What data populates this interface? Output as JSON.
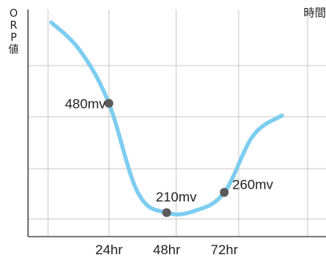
{
  "chart_data": {
    "type": "line",
    "ylabel": "ORP値",
    "xlabel": "時間",
    "x_ticks": [
      "24hr",
      "48hr",
      "72hr"
    ],
    "grid": true,
    "series": [
      {
        "color": "#7dcdf0",
        "points": [
          {
            "x": 0,
            "y": 680
          },
          {
            "x": 12,
            "y": 610
          },
          {
            "x": 24,
            "y": 480
          },
          {
            "x": 36,
            "y": 260
          },
          {
            "x": 48,
            "y": 210
          },
          {
            "x": 60,
            "y": 215
          },
          {
            "x": 72,
            "y": 260
          },
          {
            "x": 84,
            "y": 400
          },
          {
            "x": 96,
            "y": 450
          }
        ]
      }
    ],
    "annotations": [
      {
        "x": 24,
        "y": 480,
        "label": "480mv"
      },
      {
        "x": 48,
        "y": 210,
        "label": "210mv"
      },
      {
        "x": 72,
        "y": 260,
        "label": "260mv"
      }
    ],
    "marker_color": "#5a5a5a"
  }
}
